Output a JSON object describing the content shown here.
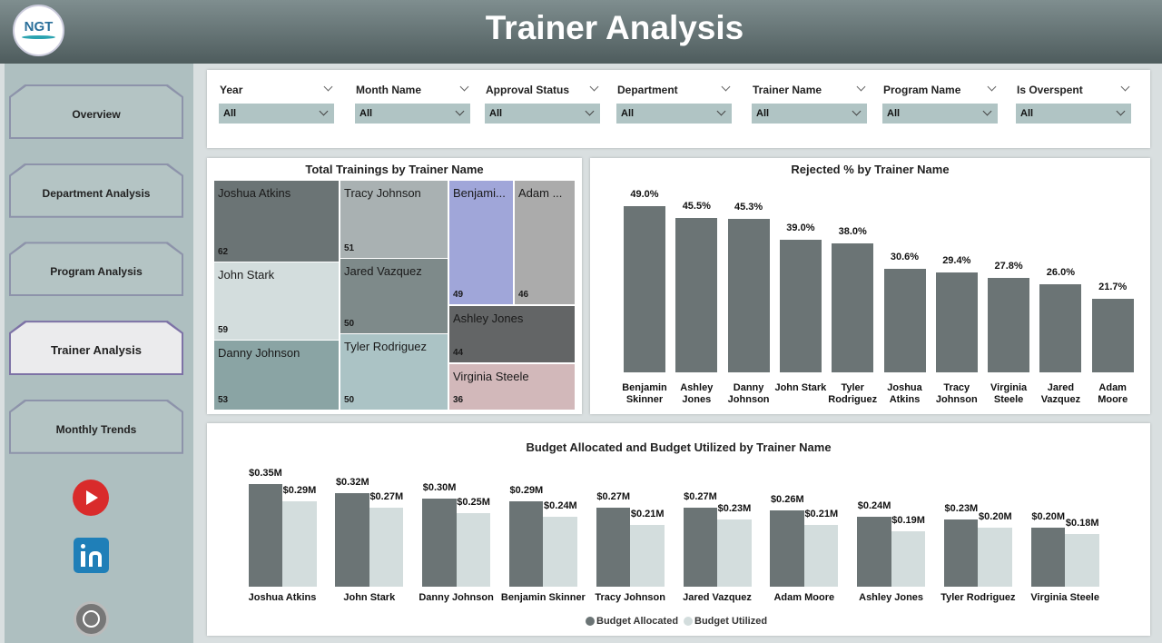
{
  "header": {
    "title": "Trainer Analysis",
    "logo": "NGT"
  },
  "nav": [
    "Overview",
    "Department Analysis",
    "Program Analysis",
    "Trainer Analysis",
    "Monthly Trends"
  ],
  "nav_active": 3,
  "filters": [
    {
      "label": "Year",
      "value": "All"
    },
    {
      "label": "Month Name",
      "value": "All"
    },
    {
      "label": "Approval Status",
      "value": "All"
    },
    {
      "label": "Department",
      "value": "All"
    },
    {
      "label": "Trainer Name",
      "value": "All"
    },
    {
      "label": "Program Name",
      "value": "All"
    },
    {
      "label": "Is Overspent",
      "value": "All"
    }
  ],
  "chart_data": [
    {
      "type": "treemap",
      "title": "Total Trainings by Trainer Name",
      "categories": [
        "Joshua Atkins",
        "John Stark",
        "Danny Johnson",
        "Tracy Johnson",
        "Jared Vazquez",
        "Tyler Rodriguez",
        "Benjami...",
        "Adam ...",
        "Ashley Jones",
        "Virginia Steele"
      ],
      "values": [
        62,
        59,
        53,
        51,
        50,
        50,
        49,
        46,
        44,
        36
      ],
      "colors": [
        "#6b7475",
        "#d3dddd",
        "#8aa4a4",
        "#a9b1b2",
        "#7e8a8a",
        "#abc3c5",
        "#a0a6d9",
        "#ababab",
        "#636566",
        "#d2b8ba"
      ]
    },
    {
      "type": "bar",
      "title": "Rejected % by Trainer Name",
      "categories": [
        "Benjamin Skinner",
        "Ashley Jones",
        "Danny Johnson",
        "John Stark",
        "Tyler Rodriguez",
        "Joshua Atkins",
        "Tracy Johnson",
        "Virginia Steele",
        "Jared Vazquez",
        "Adam Moore"
      ],
      "values": [
        49.0,
        45.5,
        45.3,
        39.0,
        38.0,
        30.6,
        29.4,
        27.8,
        26.0,
        21.7
      ],
      "value_labels": [
        "49.0%",
        "45.5%",
        "45.3%",
        "39.0%",
        "38.0%",
        "30.6%",
        "29.4%",
        "27.8%",
        "26.0%",
        "21.7%"
      ],
      "color": "#6b7475"
    },
    {
      "type": "grouped_bar",
      "title": "Budget Allocated and Budget Utilized by Trainer Name",
      "categories": [
        "Joshua Atkins",
        "John Stark",
        "Danny Johnson",
        "Benjamin Skinner",
        "Tracy Johnson",
        "Jared Vazquez",
        "Adam Moore",
        "Ashley Jones",
        "Tyler Rodriguez",
        "Virginia Steele"
      ],
      "series": [
        {
          "name": "Budget Allocated",
          "color": "#6b7475",
          "values": [
            0.35,
            0.32,
            0.3,
            0.29,
            0.27,
            0.27,
            0.26,
            0.24,
            0.23,
            0.2
          ],
          "value_labels": [
            "$0.35M",
            "$0.32M",
            "$0.30M",
            "$0.29M",
            "$0.27M",
            "$0.27M",
            "$0.26M",
            "$0.24M",
            "$0.23M",
            "$0.20M"
          ]
        },
        {
          "name": "Budget Utilized",
          "color": "#d3dddd",
          "values": [
            0.29,
            0.27,
            0.25,
            0.24,
            0.21,
            0.23,
            0.21,
            0.19,
            0.2,
            0.18
          ],
          "value_labels": [
            "$0.29M",
            "$0.27M",
            "$0.25M",
            "$0.24M",
            "$0.21M",
            "$0.23M",
            "$0.21M",
            "$0.19M",
            "$0.20M",
            "$0.18M"
          ]
        }
      ],
      "legend": "bottom"
    }
  ]
}
